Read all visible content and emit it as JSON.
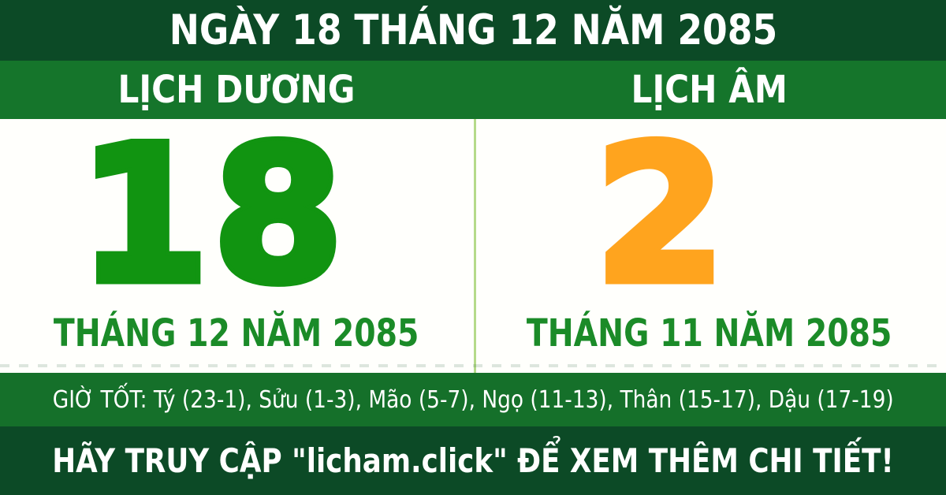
{
  "theme": {
    "dark_green": "#0C4A26",
    "medium_green": "#15752B",
    "divider_green": "#B5DA8A",
    "solar_day_color": "#119411",
    "lunar_day_color": "#FFA41E",
    "month_text_color": "#1B8B28",
    "text_on_green": "#FFFFFF",
    "card_background": "#FFFFFC"
  },
  "header": {
    "title": "NGÀY 18 THÁNG 12 NĂM 2085"
  },
  "columns": {
    "solar": {
      "label": "LỊCH DƯƠNG",
      "day": "18",
      "month_line": "THÁNG 12 NĂM 2085"
    },
    "lunar": {
      "label": "LỊCH ÂM",
      "day": "2",
      "month_line": "THÁNG 11 NĂM 2085"
    }
  },
  "good_hours": {
    "text": "GIỜ TỐT: Tý (23-1), Sửu (1-3), Mão (5-7), Ngọ (11-13), Thân (15-17), Dậu (17-19)"
  },
  "footer": {
    "text": "HÃY TRUY CẬP \"licham.click\" ĐỂ XEM THÊM CHI TIẾT!"
  }
}
